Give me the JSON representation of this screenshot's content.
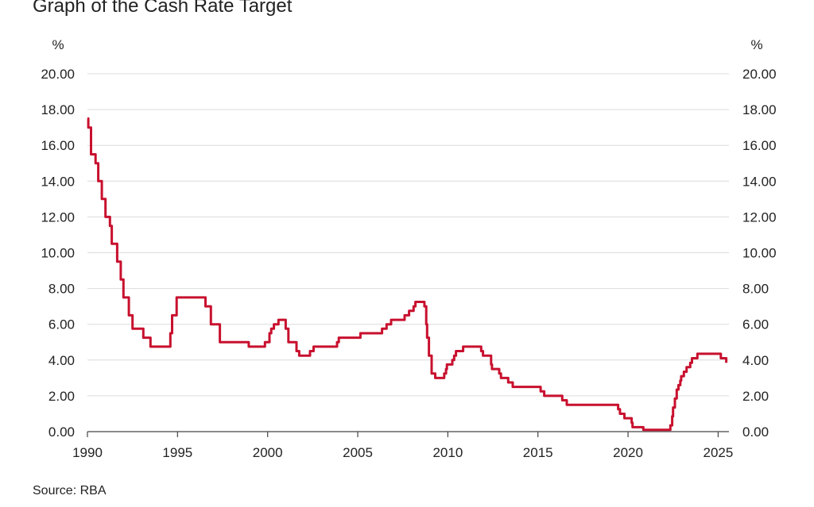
{
  "chart_data": {
    "type": "line",
    "title": "Graph of the Cash Rate Target",
    "unit_left": "%",
    "unit_right": "%",
    "source": "Source: RBA",
    "xlim": [
      1990.0,
      2025.6
    ],
    "ylim": [
      0,
      20
    ],
    "y_ticks": [
      "0.00",
      "2.00",
      "4.00",
      "6.00",
      "8.00",
      "10.00",
      "12.00",
      "14.00",
      "16.00",
      "18.00",
      "20.00"
    ],
    "x_ticks": [
      "1990",
      "1995",
      "2000",
      "2005",
      "2010",
      "2015",
      "2020",
      "2025"
    ],
    "grid": true,
    "line_color": "#c8102e",
    "series": [
      {
        "values": [
          [
            1990.0,
            17.5
          ],
          [
            1990.05,
            17.0
          ],
          [
            1990.2,
            15.5
          ],
          [
            1990.45,
            15.0
          ],
          [
            1990.6,
            14.0
          ],
          [
            1990.8,
            13.0
          ],
          [
            1991.0,
            12.0
          ],
          [
            1991.25,
            11.5
          ],
          [
            1991.35,
            10.5
          ],
          [
            1991.65,
            9.5
          ],
          [
            1991.85,
            8.5
          ],
          [
            1992.0,
            7.5
          ],
          [
            1992.3,
            6.5
          ],
          [
            1992.5,
            5.75
          ],
          [
            1993.1,
            5.25
          ],
          [
            1993.5,
            4.75
          ],
          [
            1994.6,
            5.5
          ],
          [
            1994.7,
            6.5
          ],
          [
            1994.95,
            7.5
          ],
          [
            1996.55,
            7.0
          ],
          [
            1996.85,
            6.0
          ],
          [
            1997.35,
            5.0
          ],
          [
            1998.95,
            4.75
          ],
          [
            1999.85,
            5.0
          ],
          [
            2000.1,
            5.5
          ],
          [
            2000.2,
            5.75
          ],
          [
            2000.35,
            6.0
          ],
          [
            2000.6,
            6.25
          ],
          [
            2001.0,
            5.75
          ],
          [
            2001.15,
            5.0
          ],
          [
            2001.6,
            4.5
          ],
          [
            2001.75,
            4.25
          ],
          [
            2002.35,
            4.5
          ],
          [
            2002.55,
            4.75
          ],
          [
            2003.85,
            5.0
          ],
          [
            2003.95,
            5.25
          ],
          [
            2005.15,
            5.5
          ],
          [
            2006.35,
            5.75
          ],
          [
            2006.6,
            6.0
          ],
          [
            2006.85,
            6.25
          ],
          [
            2007.6,
            6.5
          ],
          [
            2007.85,
            6.75
          ],
          [
            2008.1,
            7.0
          ],
          [
            2008.2,
            7.25
          ],
          [
            2008.7,
            7.0
          ],
          [
            2008.8,
            6.0
          ],
          [
            2008.85,
            5.25
          ],
          [
            2008.95,
            4.25
          ],
          [
            2009.1,
            3.25
          ],
          [
            2009.3,
            3.0
          ],
          [
            2009.8,
            3.25
          ],
          [
            2009.9,
            3.5
          ],
          [
            2009.95,
            3.75
          ],
          [
            2010.25,
            4.0
          ],
          [
            2010.35,
            4.25
          ],
          [
            2010.45,
            4.5
          ],
          [
            2010.85,
            4.75
          ],
          [
            2011.85,
            4.5
          ],
          [
            2011.95,
            4.25
          ],
          [
            2012.4,
            3.75
          ],
          [
            2012.45,
            3.5
          ],
          [
            2012.85,
            3.25
          ],
          [
            2012.95,
            3.0
          ],
          [
            2013.35,
            2.75
          ],
          [
            2013.6,
            2.5
          ],
          [
            2015.15,
            2.25
          ],
          [
            2015.35,
            2.0
          ],
          [
            2016.35,
            1.75
          ],
          [
            2016.6,
            1.5
          ],
          [
            2019.45,
            1.25
          ],
          [
            2019.55,
            1.0
          ],
          [
            2019.8,
            0.75
          ],
          [
            2020.2,
            0.5
          ],
          [
            2020.25,
            0.25
          ],
          [
            2020.85,
            0.1
          ],
          [
            2022.35,
            0.35
          ],
          [
            2022.45,
            0.85
          ],
          [
            2022.5,
            1.35
          ],
          [
            2022.6,
            1.85
          ],
          [
            2022.7,
            2.35
          ],
          [
            2022.8,
            2.6
          ],
          [
            2022.9,
            2.85
          ],
          [
            2022.95,
            3.1
          ],
          [
            2023.1,
            3.35
          ],
          [
            2023.25,
            3.6
          ],
          [
            2023.45,
            3.85
          ],
          [
            2023.55,
            4.1
          ],
          [
            2023.85,
            4.35
          ],
          [
            2025.15,
            4.1
          ],
          [
            2025.45,
            3.85
          ]
        ]
      }
    ]
  }
}
